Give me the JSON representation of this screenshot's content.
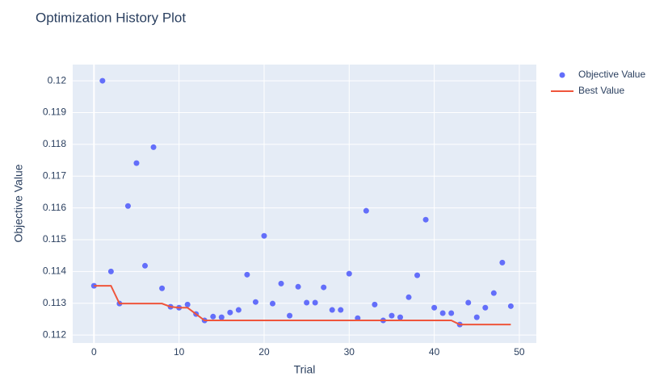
{
  "chart_data": {
    "type": "scatter",
    "title": "Optimization History Plot",
    "x_label": "Trial",
    "y_label": "Objective Value",
    "x": [
      0,
      1,
      2,
      3,
      4,
      5,
      6,
      7,
      8,
      9,
      10,
      11,
      12,
      13,
      14,
      15,
      16,
      17,
      18,
      19,
      20,
      21,
      22,
      23,
      24,
      25,
      26,
      27,
      28,
      29,
      30,
      31,
      32,
      33,
      34,
      35,
      36,
      37,
      38,
      39,
      40,
      41,
      42,
      43,
      44,
      45,
      46,
      47,
      48,
      49
    ],
    "series": [
      {
        "name": "Objective Value",
        "mode": "markers",
        "color": "#636efa",
        "values": [
          0.11355,
          0.12,
          0.114,
          0.11299,
          0.11606,
          0.11741,
          0.11418,
          0.11791,
          0.11347,
          0.11289,
          0.11286,
          0.11296,
          0.11266,
          0.11246,
          0.11258,
          0.11256,
          0.11271,
          0.11279,
          0.1139,
          0.11304,
          0.11512,
          0.11299,
          0.11362,
          0.11261,
          0.11352,
          0.11302,
          0.11302,
          0.1135,
          0.11279,
          0.11279,
          0.11393,
          0.11253,
          0.11591,
          0.11296,
          0.11246,
          0.11261,
          0.11256,
          0.11319,
          0.11388,
          0.11563,
          0.11286,
          0.11269,
          0.11269,
          0.11233,
          0.11302,
          0.11256,
          0.11286,
          0.11332,
          0.11428,
          0.11291
        ]
      },
      {
        "name": "Best Value",
        "mode": "lines",
        "color": "#ef553b",
        "values": [
          0.11355,
          0.11355,
          0.11355,
          0.11299,
          0.11299,
          0.11299,
          0.11299,
          0.11299,
          0.11299,
          0.11289,
          0.11286,
          0.11286,
          0.11266,
          0.11246,
          0.11246,
          0.11246,
          0.11246,
          0.11246,
          0.11246,
          0.11246,
          0.11246,
          0.11246,
          0.11246,
          0.11246,
          0.11246,
          0.11246,
          0.11246,
          0.11246,
          0.11246,
          0.11246,
          0.11246,
          0.11246,
          0.11246,
          0.11246,
          0.11246,
          0.11246,
          0.11246,
          0.11246,
          0.11246,
          0.11246,
          0.11246,
          0.11246,
          0.11246,
          0.11233,
          0.11233,
          0.11233,
          0.11233,
          0.11233,
          0.11233,
          0.11233
        ]
      }
    ],
    "xlim": [
      -2.5,
      52
    ],
    "ylim": [
      0.11175,
      0.12051
    ],
    "xticks": [
      0,
      10,
      20,
      30,
      40,
      50
    ],
    "yticks": [
      0.112,
      0.113,
      0.114,
      0.115,
      0.116,
      0.117,
      0.118,
      0.119,
      0.12
    ],
    "grid": true,
    "legend": "outside-right"
  }
}
